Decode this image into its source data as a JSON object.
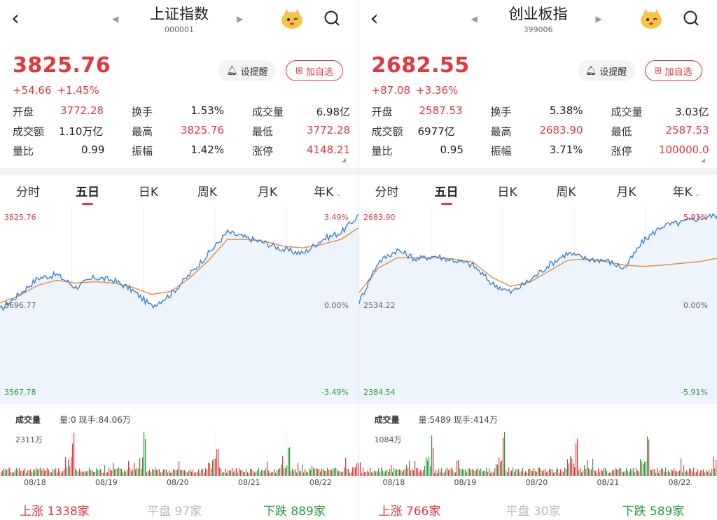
{
  "colors": {
    "up": "#e0383e",
    "down": "#2a9d3a",
    "flat": "#b8bcc4",
    "price_line": "#3b82d6",
    "avg_line": "#e8893a",
    "fill": "#e8f1fb"
  },
  "tabs": [
    "分时",
    "五日",
    "日K",
    "周K",
    "月K",
    "年K"
  ],
  "active_tab": "五日",
  "buttons": {
    "alert": "设提醒",
    "watch": "加自选"
  },
  "stat_labels": {
    "open": "开盘",
    "turnover_rate": "换手",
    "volume": "成交量",
    "amount": "成交额",
    "high": "最高",
    "low": "最低",
    "volume_ratio": "量比",
    "amplitude": "振幅",
    "limit_up": "涨停"
  },
  "volume_title": "成交量",
  "breadth_labels": {
    "up": "上涨",
    "flat": "平盘",
    "down": "下跌"
  },
  "dates": [
    "08/18",
    "08/19",
    "08/20",
    "08/21",
    "08/22"
  ],
  "panels": [
    {
      "name": "上证指数",
      "code": "000001",
      "price": "3825.76",
      "change": "+54.66",
      "change_pct": "+1.45%",
      "open": "3772.28",
      "turnover_rate": "1.53%",
      "volume": "6.98亿",
      "amount": "1.10万亿",
      "high": "3825.76",
      "low": "3772.28",
      "volume_ratio": "0.99",
      "amplitude": "1.42%",
      "limit_up": "4148.21",
      "axis": {
        "top": "3825.76",
        "mid": "3696.77",
        "bottom": "3567.78",
        "top_pct": "3.49%",
        "mid_pct": "0.00%",
        "bottom_pct": "-3.49%"
      },
      "volume_info": "量:0 现手:84.06万",
      "volume_max": "2311万",
      "breadth": {
        "up": "1338家",
        "flat": "97家",
        "down": "889家"
      }
    },
    {
      "name": "创业板指",
      "code": "399006",
      "price": "2682.55",
      "change": "+87.08",
      "change_pct": "+3.36%",
      "open": "2587.53",
      "turnover_rate": "5.38%",
      "volume": "3.03亿",
      "amount": "6977亿",
      "high": "2683.90",
      "low": "2587.53",
      "volume_ratio": "0.95",
      "amplitude": "3.71%",
      "limit_up": "100000.0",
      "axis": {
        "top": "2683.90",
        "mid": "2534.22",
        "bottom": "2384.54",
        "top_pct": "5.91%",
        "mid_pct": "0.00%",
        "bottom_pct": "-5.91%"
      },
      "volume_info": "量:5489 现手:414万",
      "volume_max": "1084万",
      "breadth": {
        "up": "766家",
        "flat": "30家",
        "down": "589家"
      }
    }
  ],
  "chart_data": [
    {
      "type": "line",
      "title": "上证指数",
      "x": [
        "08/18",
        "08/19",
        "08/20",
        "08/21",
        "08/22"
      ],
      "ylim": [
        3567.78,
        3825.76
      ],
      "series": [],
      "price_path": [
        3690,
        3712,
        3735,
        3740,
        3722,
        3736,
        3732,
        3718,
        3695,
        3712,
        3740,
        3770,
        3800,
        3792,
        3785,
        3775,
        3770,
        3790,
        3800,
        3825.76
      ],
      "avg_path": [
        3700,
        3710,
        3725,
        3732,
        3728,
        3730,
        3728,
        3722,
        3712,
        3716,
        3735,
        3760,
        3790,
        3790,
        3787,
        3780,
        3778,
        3783,
        3790,
        3808
      ]
    },
    {
      "type": "line",
      "title": "创业板指",
      "x": [
        "08/18",
        "08/19",
        "08/20",
        "08/21",
        "08/22"
      ],
      "ylim": [
        2384.54,
        2683.9
      ],
      "series": [],
      "price_path": [
        2540,
        2605,
        2625,
        2610,
        2615,
        2608,
        2600,
        2570,
        2555,
        2575,
        2600,
        2620,
        2610,
        2608,
        2595,
        2640,
        2665,
        2670,
        2678,
        2682.55
      ],
      "avg_path": [
        2555,
        2595,
        2612,
        2612,
        2612,
        2610,
        2605,
        2580,
        2565,
        2572,
        2590,
        2608,
        2610,
        2606,
        2600,
        2598,
        2600,
        2603,
        2606,
        2612
      ]
    }
  ]
}
